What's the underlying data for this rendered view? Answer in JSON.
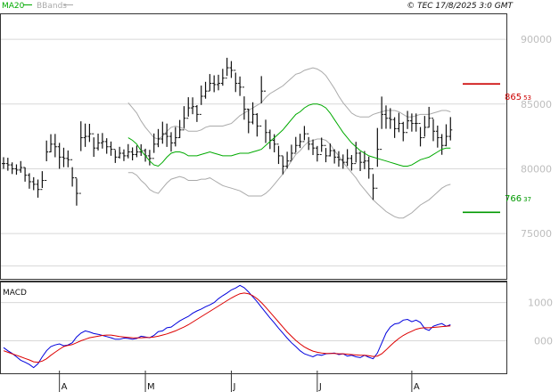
{
  "header": {
    "ma_label": "MA20",
    "bb_label": "BBands",
    "source": "© TEC 17/8/2025 3:0 GMT"
  },
  "colors": {
    "ma": "#00aa00",
    "bbands": "#aaaaaa",
    "price": "#111111",
    "macd": "#0000dd",
    "signal": "#dd0000",
    "grid": "#d8d8d8",
    "resistance": "#cc0000",
    "support": "#009900"
  },
  "levels": {
    "resistance": {
      "int": "865",
      "dec": "53",
      "value": 86553
    },
    "support": {
      "int": "766",
      "dec": "37",
      "value": 76637
    }
  },
  "chart_data": [
    {
      "type": "ohlc",
      "ylim": [
        71500,
        92000
      ],
      "yticks": [
        {
          "label": "90000",
          "value": 90000
        },
        {
          "label": "85000",
          "value": 85000
        },
        {
          "label": "80000",
          "value": 80000
        },
        {
          "label": "75000",
          "value": 75000
        }
      ],
      "hgrid": [
        90000,
        85000,
        80000,
        75000,
        72500
      ],
      "x_months": [
        {
          "label": "A",
          "index": 13
        },
        {
          "label": "M",
          "index": 33
        },
        {
          "label": "J",
          "index": 53
        },
        {
          "label": "J",
          "index": 73
        },
        {
          "label": "A",
          "index": 95
        }
      ],
      "price_close": [
        80400,
        80300,
        80000,
        79900,
        80100,
        79500,
        79000,
        78800,
        78400,
        79100,
        81300,
        81900,
        81700,
        80900,
        80800,
        80700,
        79300,
        78100,
        82400,
        82500,
        82700,
        81600,
        82000,
        82100,
        81700,
        81500,
        80900,
        81200,
        81000,
        81300,
        81100,
        81300,
        81400,
        81000,
        80800,
        81900,
        82300,
        82700,
        82500,
        82000,
        82400,
        83000,
        83900,
        84700,
        84800,
        84200,
        85600,
        86000,
        86600,
        86500,
        86600,
        87000,
        87800,
        87600,
        86600,
        86300,
        84600,
        83600,
        84200,
        83300,
        86000,
        82800,
        82200,
        81900,
        81000,
        80200,
        80600,
        81200,
        81800,
        82100,
        82700,
        81900,
        81600,
        81100,
        81800,
        81000,
        81400,
        80900,
        80700,
        80500,
        80800,
        80400,
        81200,
        80500,
        80600,
        80000,
        78500,
        81500,
        84200,
        83900,
        83800,
        83100,
        83500,
        82800,
        83700,
        83500,
        83500,
        82400,
        83200,
        83900,
        82900,
        82400,
        81800,
        82500,
        83000
      ],
      "price_range": [
        900,
        1000,
        900,
        800,
        900,
        1100,
        1200,
        1000,
        1400,
        1300,
        1600,
        1400,
        1800,
        2000,
        1500,
        1300,
        1500,
        2100,
        2300,
        1800,
        1400,
        1500,
        1300,
        1200,
        1200,
        1100,
        1000,
        900,
        900,
        1100,
        1000,
        900,
        900,
        1000,
        1200,
        1500,
        1400,
        1700,
        1800,
        1500,
        1500,
        1400,
        1700,
        1500,
        1300,
        1300,
        1500,
        1300,
        1300,
        1300,
        1200,
        1300,
        1400,
        1300,
        1500,
        1500,
        1800,
        1900,
        1700,
        1800,
        2100,
        1800,
        1500,
        1400,
        1400,
        1400,
        1300,
        1200,
        1200,
        1100,
        1100,
        1000,
        1200,
        1200,
        1100,
        1100,
        1000,
        1100,
        1200,
        1100,
        1300,
        1200,
        1600,
        1500,
        1400,
        1700,
        2000,
        3000,
        2500,
        1800,
        1600,
        1600,
        1500,
        1500,
        1400,
        1400,
        1400,
        1500,
        1600,
        1600,
        1700,
        1700,
        1600,
        1700,
        1800
      ],
      "ma20": [
        82400,
        82200,
        81900,
        81400,
        81000,
        80600,
        80300,
        80200,
        80500,
        80900,
        81200,
        81300,
        81300,
        81200,
        81000,
        81000,
        81000,
        81100,
        81200,
        81300,
        81200,
        81100,
        81000,
        81000,
        81000,
        81100,
        81200,
        81200,
        81200,
        81300,
        81400,
        81500,
        81800,
        82100,
        82400,
        82700,
        83000,
        83400,
        83800,
        84200,
        84400,
        84700,
        84900,
        85000,
        85000,
        84900,
        84700,
        84300,
        83800,
        83300,
        82800,
        82400,
        82000,
        81700,
        81400,
        81200,
        81000,
        80900,
        80800,
        80700,
        80600,
        80500,
        80400,
        80300,
        80200,
        80200,
        80300,
        80500,
        80700,
        80800,
        80900,
        81100,
        81300,
        81500,
        81600,
        81600
      ],
      "bb_width": [
        2700,
        2500,
        2400,
        2300,
        2200,
        2200,
        2100,
        2100,
        2000,
        2000,
        2000,
        2000,
        1900,
        1900,
        1900,
        1900,
        1900,
        1900,
        2000,
        2000,
        2100,
        2200,
        2300,
        2400,
        2500,
        2700,
        2900,
        3100,
        3300,
        3400,
        3500,
        3600,
        3700,
        3700,
        3600,
        3500,
        3400,
        3300,
        3200,
        3100,
        3000,
        2900,
        2800,
        2800,
        2700,
        2600,
        2500,
        2400,
        2400,
        2300,
        2300,
        2300,
        2300,
        2400,
        2600,
        2800,
        3000,
        3300,
        3500,
        3700,
        3900,
        4000,
        4100,
        4100,
        4000,
        3800,
        3700,
        3600,
        3500,
        3400,
        3300,
        3200,
        3100,
        3000,
        2900,
        2800
      ],
      "ma_start_index": 29
    },
    {
      "type": "line",
      "title": "MACD",
      "ylim": [
        -850,
        1550
      ],
      "yticks": [
        {
          "label": "1000",
          "value": 1000
        },
        {
          "label": "000",
          "value": 0
        }
      ],
      "hgrid": [
        1000,
        0
      ],
      "series": [
        {
          "key": "macd",
          "values": [
            -180,
            -260,
            -330,
            -420,
            -510,
            -560,
            -620,
            -700,
            -600,
            -420,
            -260,
            -150,
            -110,
            -80,
            -130,
            -110,
            -50,
            100,
            200,
            260,
            230,
            190,
            170,
            140,
            110,
            80,
            40,
            40,
            70,
            60,
            40,
            60,
            120,
            100,
            80,
            140,
            240,
            260,
            340,
            360,
            440,
            520,
            580,
            640,
            720,
            780,
            830,
            890,
            940,
            1000,
            1100,
            1180,
            1250,
            1330,
            1380,
            1450,
            1390,
            1280,
            1150,
            1020,
            880,
            740,
            600,
            470,
            330,
            200,
            70,
            -50,
            -150,
            -260,
            -340,
            -380,
            -420,
            -360,
            -380,
            -340,
            -330,
            -320,
            -360,
            -340,
            -400,
            -380,
            -420,
            -440,
            -380,
            -430,
            -470,
            -320,
            -60,
            200,
            360,
            440,
            460,
            540,
            560,
            500,
            540,
            480,
            320,
            270,
            380,
            420,
            450,
            380,
            420
          ]
        },
        {
          "key": "signal",
          "values": [
            -260,
            -300,
            -340,
            -380,
            -420,
            -460,
            -500,
            -550,
            -560,
            -530,
            -470,
            -380,
            -300,
            -220,
            -150,
            -120,
            -100,
            -50,
            0,
            40,
            80,
            100,
            120,
            140,
            150,
            150,
            130,
            110,
            100,
            90,
            80,
            75,
            80,
            85,
            90,
            100,
            120,
            150,
            180,
            220,
            260,
            310,
            360,
            420,
            490,
            560,
            630,
            700,
            770,
            840,
            910,
            980,
            1050,
            1120,
            1180,
            1230,
            1250,
            1230,
            1180,
            1100,
            1000,
            880,
            750,
            620,
            490,
            360,
            230,
            120,
            10,
            -80,
            -160,
            -220,
            -270,
            -300,
            -320,
            -330,
            -330,
            -330,
            -340,
            -340,
            -350,
            -360,
            -370,
            -380,
            -380,
            -390,
            -410,
            -400,
            -340,
            -240,
            -130,
            -30,
            60,
            140,
            200,
            250,
            300,
            330,
            340,
            340,
            350,
            360,
            370,
            380,
            390
          ]
        }
      ]
    }
  ]
}
